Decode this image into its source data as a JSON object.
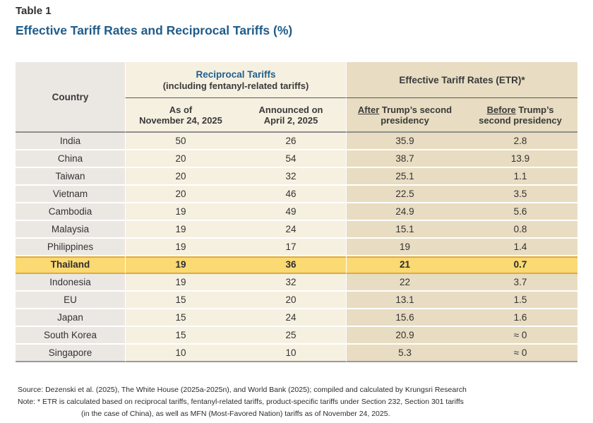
{
  "page": {
    "table_label": "Table 1",
    "title": "Effective Tariff Rates and Reciprocal Tariffs (%)"
  },
  "colors": {
    "title_blue": "#1f5c8a",
    "country_column_bg": "#ebe8e4",
    "reciprocal_section_bg": "#f6f0e1",
    "etr_section_bg": "#e8dcc2",
    "highlight_row_bg": "#fbd973",
    "highlight_row_border": "#ddab3e"
  },
  "table": {
    "header": {
      "country": "Country",
      "reciprocal_group_title": "Reciprocal Tariffs",
      "reciprocal_group_subtitle": "(including fentanyl-related tariffs)",
      "etr_group_title": "Effective Tariff Rates (ETR)*",
      "col_asof_line1": "As of",
      "col_asof_line2": "November 24, 2025",
      "col_announced_line1": "Announced on",
      "col_announced_line2": "April 2, 2025",
      "col_after_word": "After",
      "col_after_rest": " Trump’s second presidency",
      "col_before_word": "Before",
      "col_before_rest": " Trump’s second presidency"
    },
    "rows": [
      {
        "country": "India",
        "asof": "50",
        "announced": "26",
        "after": "35.9",
        "before": "2.8",
        "highlight": false
      },
      {
        "country": "China",
        "asof": "20",
        "announced": "54",
        "after": "38.7",
        "before": "13.9",
        "highlight": false
      },
      {
        "country": "Taiwan",
        "asof": "20",
        "announced": "32",
        "after": "25.1",
        "before": "1.1",
        "highlight": false
      },
      {
        "country": "Vietnam",
        "asof": "20",
        "announced": "46",
        "after": "22.5",
        "before": "3.5",
        "highlight": false
      },
      {
        "country": "Cambodia",
        "asof": "19",
        "announced": "49",
        "after": "24.9",
        "before": "5.6",
        "highlight": false
      },
      {
        "country": "Malaysia",
        "asof": "19",
        "announced": "24",
        "after": "15.1",
        "before": "0.8",
        "highlight": false
      },
      {
        "country": "Philippines",
        "asof": "19",
        "announced": "17",
        "after": "19",
        "before": "1.4",
        "highlight": false
      },
      {
        "country": "Thailand",
        "asof": "19",
        "announced": "36",
        "after": "21",
        "before": "0.7",
        "highlight": true
      },
      {
        "country": "Indonesia",
        "asof": "19",
        "announced": "32",
        "after": "22",
        "before": "3.7",
        "highlight": false
      },
      {
        "country": "EU",
        "asof": "15",
        "announced": "20",
        "after": "13.1",
        "before": "1.5",
        "highlight": false
      },
      {
        "country": "Japan",
        "asof": "15",
        "announced": "24",
        "after": "15.6",
        "before": "1.6",
        "highlight": false
      },
      {
        "country": "South Korea",
        "asof": "15",
        "announced": "25",
        "after": "20.9",
        "before": "≈ 0",
        "highlight": false
      },
      {
        "country": "Singapore",
        "asof": "10",
        "announced": "10",
        "after": "5.3",
        "before": "≈ 0",
        "highlight": false
      }
    ]
  },
  "footer": {
    "source": "Source: Dezenski et al. (2025), The White House (2025a-2025n), and World Bank (2025); compiled and calculated by Krungsri Research",
    "note_line1": "Note: * ETR is calculated based on reciprocal tariffs, fentanyl-related tariffs, product-specific tariffs under Section 232, Section 301 tariffs",
    "note_line2": "(in the case of China), as well as MFN (Most-Favored Nation) tariffs as of November 24, 2025."
  }
}
